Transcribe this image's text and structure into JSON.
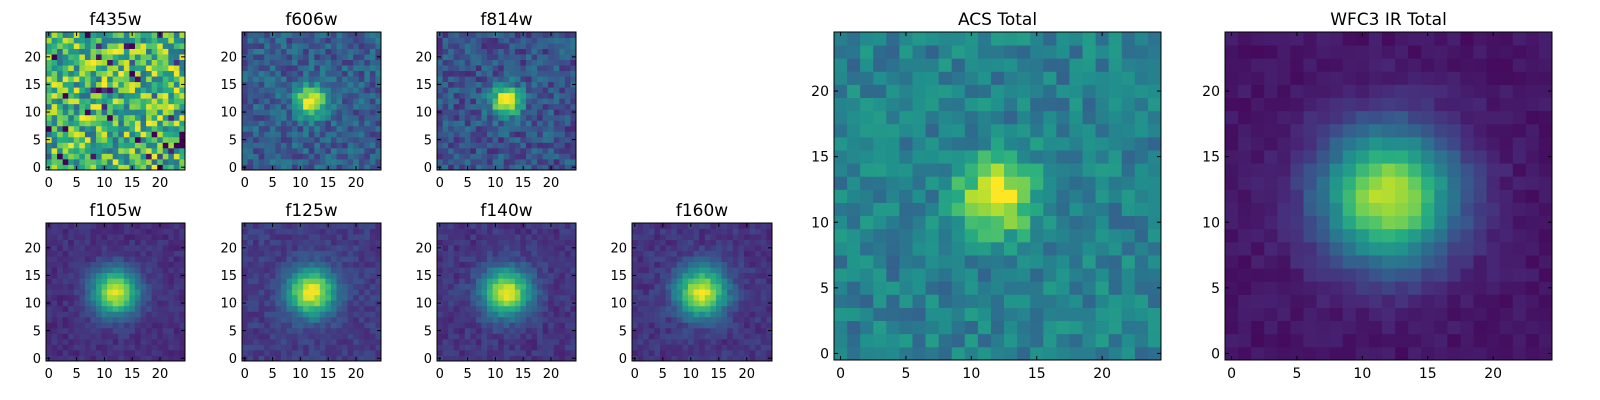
{
  "chart_data": [
    {
      "type": "heatmap",
      "title": "f435w",
      "xlim": [
        0,
        25
      ],
      "ylim": [
        0,
        25
      ],
      "xticks": [
        0,
        5,
        10,
        15,
        20
      ],
      "yticks": [
        0,
        5,
        10,
        15,
        20
      ],
      "grid": false,
      "peak": [
        12,
        12
      ],
      "colormap": "viridis"
    },
    {
      "type": "heatmap",
      "title": "f606w",
      "xlim": [
        0,
        25
      ],
      "ylim": [
        0,
        25
      ],
      "xticks": [
        0,
        5,
        10,
        15,
        20
      ],
      "yticks": [
        0,
        5,
        10,
        15,
        20
      ],
      "grid": false,
      "peak": [
        12,
        12
      ],
      "colormap": "viridis"
    },
    {
      "type": "heatmap",
      "title": "f814w",
      "xlim": [
        0,
        25
      ],
      "ylim": [
        0,
        25
      ],
      "xticks": [
        0,
        5,
        10,
        15,
        20
      ],
      "yticks": [
        0,
        5,
        10,
        15,
        20
      ],
      "grid": false,
      "peak": [
        12,
        12
      ],
      "colormap": "viridis"
    },
    {
      "type": "heatmap",
      "title": "f105w",
      "xlim": [
        0,
        25
      ],
      "ylim": [
        0,
        25
      ],
      "xticks": [
        0,
        5,
        10,
        15,
        20
      ],
      "yticks": [
        0,
        5,
        10,
        15,
        20
      ],
      "grid": false,
      "peak": [
        12,
        12
      ],
      "colormap": "viridis"
    },
    {
      "type": "heatmap",
      "title": "f125w",
      "xlim": [
        0,
        25
      ],
      "ylim": [
        0,
        25
      ],
      "xticks": [
        0,
        5,
        10,
        15,
        20
      ],
      "yticks": [
        0,
        5,
        10,
        15,
        20
      ],
      "grid": false,
      "peak": [
        12,
        12
      ],
      "colormap": "viridis"
    },
    {
      "type": "heatmap",
      "title": "f140w",
      "xlim": [
        0,
        25
      ],
      "ylim": [
        0,
        25
      ],
      "xticks": [
        0,
        5,
        10,
        15,
        20
      ],
      "yticks": [
        0,
        5,
        10,
        15,
        20
      ],
      "grid": false,
      "peak": [
        12,
        12
      ],
      "colormap": "viridis"
    },
    {
      "type": "heatmap",
      "title": "f160w",
      "xlim": [
        0,
        25
      ],
      "ylim": [
        0,
        25
      ],
      "xticks": [
        0,
        5,
        10,
        15,
        20
      ],
      "yticks": [
        0,
        5,
        10,
        15,
        20
      ],
      "grid": false,
      "peak": [
        12,
        12
      ],
      "colormap": "viridis"
    },
    {
      "type": "heatmap",
      "title": "ACS Total",
      "xlim": [
        0,
        25
      ],
      "ylim": [
        0,
        25
      ],
      "xticks": [
        0,
        5,
        10,
        15,
        20
      ],
      "yticks": [
        0,
        5,
        10,
        15,
        20
      ],
      "grid": false,
      "peak": [
        12,
        12
      ],
      "colormap": "viridis"
    },
    {
      "type": "heatmap",
      "title": "WFC3 IR Total",
      "xlim": [
        0,
        25
      ],
      "ylim": [
        0,
        25
      ],
      "xticks": [
        0,
        5,
        10,
        15,
        20
      ],
      "yticks": [
        0,
        5,
        10,
        15,
        20
      ],
      "grid": false,
      "peak": [
        12,
        12
      ],
      "colormap": "viridis"
    }
  ]
}
